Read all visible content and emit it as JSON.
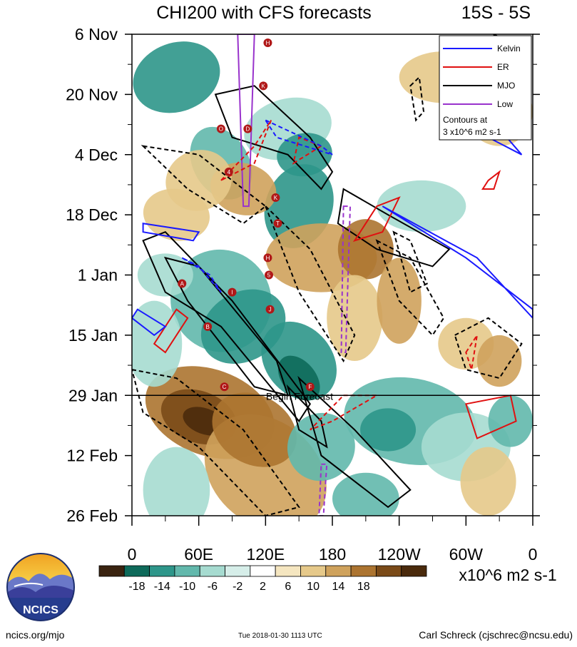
{
  "chart_data": {
    "type": "heatmap",
    "title": "CHI200 with CFS forecasts",
    "region_label": "15S - 5S",
    "y_ticks": [
      "6 Nov",
      "20 Nov",
      "4 Dec",
      "18 Dec",
      "1 Jan",
      "15 Jan",
      "29 Jan",
      "12 Feb",
      "26 Feb"
    ],
    "x_ticks": [
      "0",
      "60E",
      "120E",
      "180",
      "120W",
      "60W",
      "0"
    ],
    "x_range_deg": [
      0,
      360
    ],
    "y_range_days": [
      0,
      112
    ],
    "forecast_day": 84,
    "forecast_label": "Begin Forecast",
    "legend": {
      "placement": "top-right",
      "entries": [
        {
          "name": "Kelvin",
          "color": "#1a1aff"
        },
        {
          "name": "ER",
          "color": "#e01010"
        },
        {
          "name": "MJO",
          "color": "#000000"
        },
        {
          "name": "Low",
          "color": "#9933cc"
        }
      ],
      "note_line1": "Contours at",
      "note_line2": "3 x10^6 m2 s-1"
    },
    "colorbar": {
      "ticks": [
        "-18",
        "-14",
        "-10",
        "-6",
        "-2",
        "2",
        "6",
        "10",
        "14",
        "18"
      ],
      "unit": "x10^6 m2 s-1",
      "colors": [
        "#3a2310",
        "#0e6a5a",
        "#2e968a",
        "#62b8ac",
        "#a6dbd0",
        "#d6eee9",
        "#ffffff",
        "#f5e6c0",
        "#e6c98a",
        "#cfa25c",
        "#ac7430",
        "#7a4a18",
        "#4a2a0c"
      ]
    },
    "storms": [
      "H",
      "K",
      "O",
      "D",
      "4",
      "K",
      "T",
      "H",
      "5",
      "A",
      "I",
      "J",
      "B",
      "F",
      "C"
    ]
  },
  "footer": {
    "logo_text": "NCICS",
    "left": "ncics.org/mjo",
    "center": "Tue 2018-01-30 1113 UTC",
    "right": "Carl Schreck (cjschrec@ncsu.edu)"
  }
}
